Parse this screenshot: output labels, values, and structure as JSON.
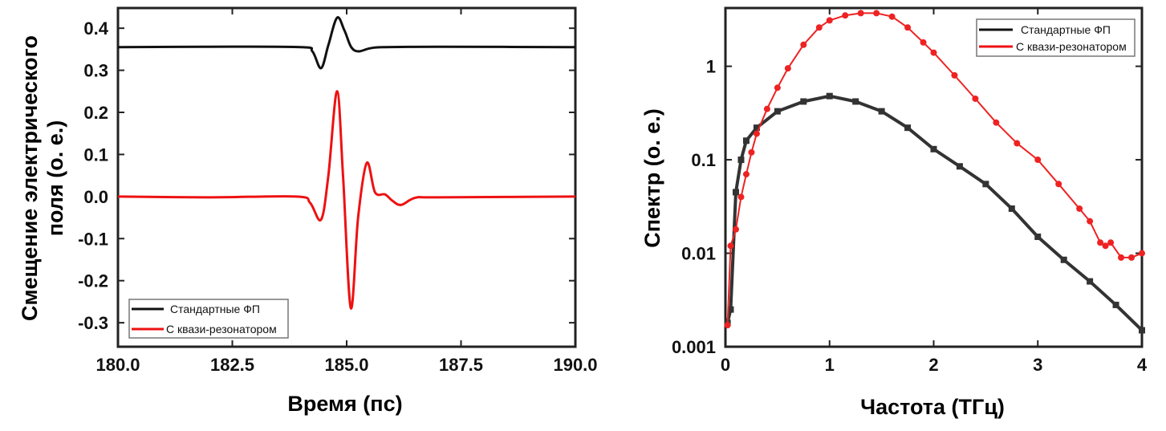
{
  "chart_data": [
    {
      "type": "line",
      "xlabel": "Время (пс)",
      "ylabel_lines": [
        "Смещение электрического",
        "поля (о. е.)"
      ],
      "xlim": [
        180,
        190
      ],
      "ylim": [
        -0.357,
        0.448
      ],
      "xticks": [
        "180.0",
        "182.5",
        "185.0",
        "187.5",
        "190.0"
      ],
      "xtick_values": [
        180,
        182.5,
        185,
        187.5,
        190
      ],
      "yticks": [
        "0.4",
        "0.3",
        "0.2",
        "0.1",
        "0.0",
        "-0.1",
        "-0.2",
        "-0.3"
      ],
      "ytick_values": [
        0.4,
        0.3,
        0.2,
        0.1,
        0.0,
        -0.1,
        -0.2,
        -0.3
      ],
      "legend_position": "bottom-left",
      "series": [
        {
          "name": "Стандартные ФП",
          "color": "#111111",
          "x": [
            180,
            182,
            184.0,
            184.25,
            184.44,
            184.6,
            184.79,
            184.95,
            185.1,
            185.26,
            185.5,
            185.8,
            187,
            190
          ],
          "y": [
            0.355,
            0.356,
            0.355,
            0.345,
            0.305,
            0.36,
            0.425,
            0.395,
            0.355,
            0.345,
            0.352,
            0.355,
            0.356,
            0.355
          ]
        },
        {
          "name": "С квази-резонатором",
          "color": "#ee1111",
          "x": [
            180,
            182,
            183.9,
            184.2,
            184.44,
            184.6,
            184.79,
            184.92,
            185.09,
            185.25,
            185.44,
            185.62,
            185.84,
            186.0,
            186.19,
            186.5,
            187,
            190
          ],
          "y": [
            0.0,
            -0.002,
            0.0,
            -0.015,
            -0.055,
            0.05,
            0.25,
            0.05,
            -0.265,
            -0.05,
            0.08,
            0.01,
            0.005,
            -0.01,
            -0.02,
            -0.003,
            -0.002,
            0.0
          ]
        }
      ]
    },
    {
      "type": "line",
      "yscale": "log",
      "xlabel": "Частота (ТГц)",
      "ylabel": "Спектр (о. е.)",
      "xlim": [
        0,
        4
      ],
      "ylim": [
        0.001,
        4.2
      ],
      "xticks": [
        "0",
        "1",
        "2",
        "3",
        "4"
      ],
      "xtick_values": [
        0,
        1,
        2,
        3,
        4
      ],
      "yticks": [
        "1",
        "0.1",
        "0.01",
        "0.001"
      ],
      "ytick_values": [
        1,
        0.1,
        0.01,
        0.001
      ],
      "legend_position": "top-right",
      "series": [
        {
          "name": "Стандартные ФП",
          "color": "#333333",
          "marker": "square",
          "x": [
            0.02,
            0.05,
            0.1,
            0.15,
            0.2,
            0.3,
            0.5,
            0.75,
            1.0,
            1.25,
            1.5,
            1.75,
            2.0,
            2.25,
            2.5,
            2.75,
            3.0,
            3.25,
            3.5,
            3.75,
            4.0
          ],
          "y": [
            0.0018,
            0.0025,
            0.045,
            0.1,
            0.16,
            0.22,
            0.33,
            0.42,
            0.48,
            0.42,
            0.33,
            0.22,
            0.13,
            0.085,
            0.055,
            0.03,
            0.015,
            0.0085,
            0.005,
            0.0028,
            0.0015
          ]
        },
        {
          "name": "С квази-резонатором",
          "color": "#ee2222",
          "marker": "circle",
          "x": [
            0.02,
            0.05,
            0.1,
            0.15,
            0.2,
            0.25,
            0.3,
            0.4,
            0.5,
            0.6,
            0.75,
            0.9,
            1.0,
            1.15,
            1.3,
            1.45,
            1.6,
            1.75,
            1.9,
            2.0,
            2.2,
            2.4,
            2.6,
            2.8,
            3.0,
            3.2,
            3.4,
            3.5,
            3.6,
            3.65,
            3.7,
            3.8,
            3.9,
            4.0
          ],
          "y": [
            0.0017,
            0.012,
            0.018,
            0.04,
            0.07,
            0.12,
            0.19,
            0.35,
            0.59,
            0.95,
            1.7,
            2.6,
            3.1,
            3.5,
            3.7,
            3.7,
            3.4,
            2.6,
            1.8,
            1.4,
            0.8,
            0.45,
            0.25,
            0.15,
            0.1,
            0.055,
            0.03,
            0.022,
            0.013,
            0.012,
            0.013,
            0.009,
            0.009,
            0.01
          ]
        }
      ]
    }
  ]
}
